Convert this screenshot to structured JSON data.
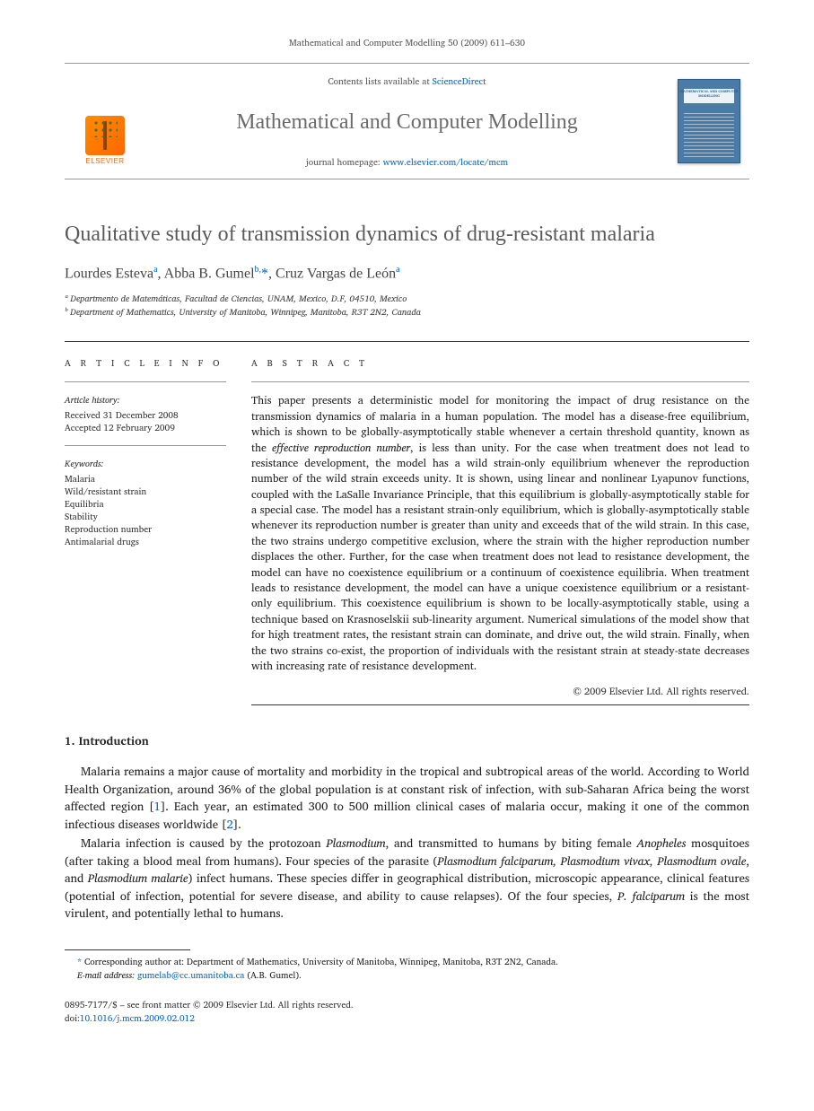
{
  "citation": "Mathematical and Computer Modelling 50 (2009) 611–630",
  "masthead": {
    "contents_prefix": "Contents lists available at ",
    "contents_link": "ScienceDirect",
    "journal_name": "Mathematical and Computer Modelling",
    "homepage_prefix": "journal homepage: ",
    "homepage_url": "www.elsevier.com/locate/mcm",
    "publisher": "ELSEVIER",
    "cover_title": "MATHEMATICAL AND COMPUTER MODELLING"
  },
  "article": {
    "title": "Qualitative study of transmission dynamics of drug-resistant malaria",
    "authors_html": "Lourdes Esteva<sup><a>a</a></sup>, Abba B. Gumel<sup><a>b,</a></sup><a>*</a>, Cruz Vargas de León<sup><a>a</a></sup>",
    "affiliations": [
      "ᵃ Departmento de Matemáticas, Facultad de Ciencias, UNAM, Mexico, D.F, 04510, Mexico",
      "ᵇ Department of Mathematics, University of Manitoba, Winnipeg, Manitoba, R3T 2N2, Canada"
    ]
  },
  "info": {
    "heading": "A R T I C L E   I N F O",
    "history_label": "Article history:",
    "received": "Received 31 December 2008",
    "accepted": "Accepted 12 February 2009",
    "keywords_label": "Keywords:",
    "keywords": [
      "Malaria",
      "Wild/resistant strain",
      "Equilibria",
      "Stability",
      "Reproduction number",
      "Antimalarial drugs"
    ]
  },
  "abstract": {
    "heading": "A B S T R A C T",
    "text": "This paper presents a deterministic model for monitoring the impact of drug resistance on the transmission dynamics of malaria in a human population. The model has a disease-free equilibrium, which is shown to be globally-asymptotically stable whenever a certain threshold quantity, known as the <em>effective reproduction number</em>, is less than unity. For the case when treatment does not lead to resistance development, the model has a wild strain-only equilibrium whenever the reproduction number of the wild strain exceeds unity. It is shown, using linear and nonlinear Lyapunov functions, coupled with the LaSalle Invariance Principle, that this equilibrium is globally-asymptotically stable for a special case. The model has a resistant strain-only equilibrium, which is globally-asymptotically stable whenever its reproduction number is greater than unity and exceeds that of the wild strain. In this case, the two strains undergo competitive exclusion, where the strain with the higher reproduction number displaces the other. Further, for the case when treatment does not lead to resistance development, the model can have no coexistence equilibrium or a continuum of coexistence equilibria. When treatment leads to resistance development, the model can have a unique coexistence equilibrium or a resistant-only equilibrium. This coexistence equilibrium is shown to be locally-asymptotically stable, using a technique based on Krasnoselskii sub-linearity argument. Numerical simulations of the model show that for high treatment rates, the resistant strain can dominate, and drive out, the wild strain. Finally, when the two strains co-exist, the proportion of individuals with the resistant strain at steady-state decreases with increasing rate of resistance development.",
    "copyright": "© 2009 Elsevier Ltd. All rights reserved."
  },
  "sections": {
    "intro_heading": "1.  Introduction",
    "intro_paragraphs": [
      "Malaria remains a major cause of mortality and morbidity in the tropical and subtropical areas of the world. According to World Health Organization, around 36% of the global population is at constant risk of infection, with sub-Saharan Africa being the worst affected region [<a>1</a>]. Each year, an estimated 300 to 500 million clinical cases of malaria occur, making it one of the common infectious diseases worldwide [<a>2</a>].",
      "Malaria infection is caused by the protozoan <em>Plasmodium</em>, and transmitted to humans by biting female <em>Anopheles</em> mosquitoes (after taking a blood meal from humans). Four species of the parasite (<em>Plasmodium falciparum, Plasmodium vivax, Plasmodium ovale</em>, and <em>Plasmodium malarie</em>) infect humans. These species differ in geographical distribution, microscopic appearance, clinical features (potential of infection, potential for severe disease, and ability to cause relapses). Of the four species, <em>P. falciparum</em> is the most virulent, and potentially lethal to humans."
    ]
  },
  "footnotes": {
    "corresponding": "Corresponding author at: Department of Mathematics, University of Manitoba, Winnipeg, Manitoba, R3T 2N2, Canada.",
    "email_label": "E-mail address:",
    "email": "gumelab@cc.umanitoba.ca",
    "email_suffix": "(A.B. Gumel)."
  },
  "footer": {
    "issn_line": "0895-7177/$ – see front matter © 2009 Elsevier Ltd. All rights reserved.",
    "doi_label": "doi:",
    "doi": "10.1016/j.mcm.2009.02.012"
  },
  "colors": {
    "link": "#0066cc",
    "elsevier_orange": "#ff6600",
    "heading_gray": "#5a5a5a",
    "cover_blue": "#4a7ba6"
  }
}
